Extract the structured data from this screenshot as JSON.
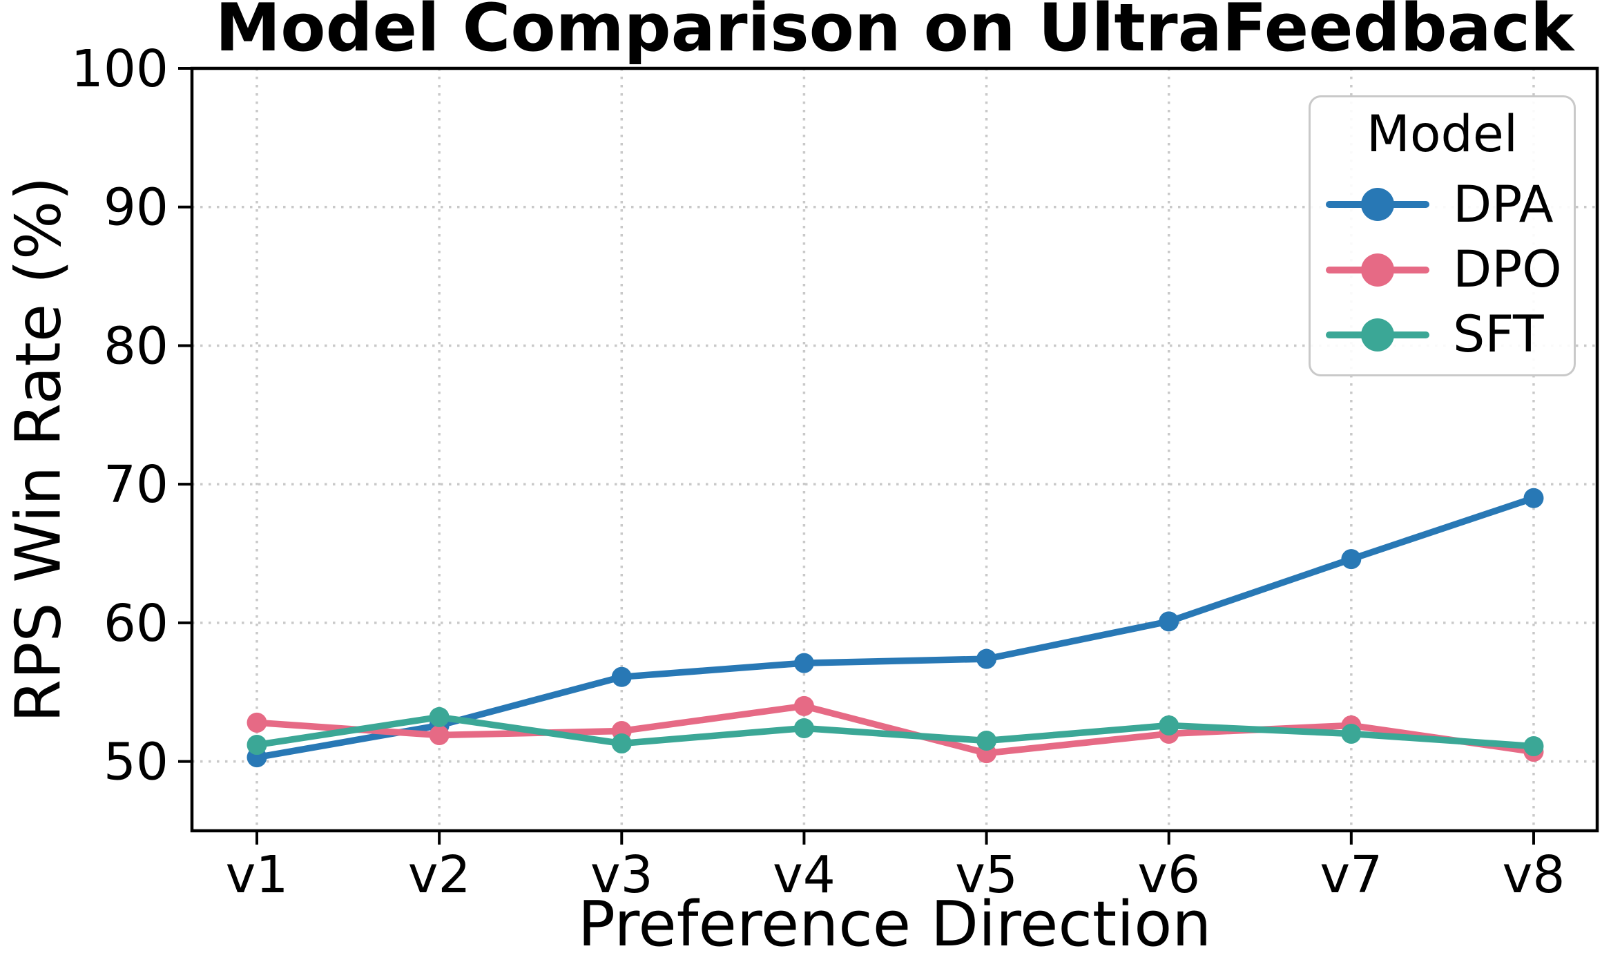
{
  "title": "Model Comparison on UltraFeedback",
  "axes": {
    "xlabel": "Preference Direction",
    "ylabel": "RPS Win Rate (%)"
  },
  "legend": {
    "title": "Model",
    "entries": [
      "DPA",
      "DPO",
      "SFT"
    ]
  },
  "colors": {
    "dpa": "#2878B5",
    "dpo": "#E66A85",
    "sft": "#3BA796",
    "grid": "#c9c9c9",
    "axis": "#000000",
    "legend_border": "#c9c9c9"
  },
  "chart_data": {
    "type": "line",
    "title": "Model Comparison on UltraFeedback",
    "xlabel": "Preference Direction",
    "ylabel": "RPS Win Rate (%)",
    "categories": [
      "v1",
      "v2",
      "v3",
      "v4",
      "v5",
      "v6",
      "v7",
      "v8"
    ],
    "series": [
      {
        "name": "DPA",
        "color": "#2878B5",
        "values": [
          50.3,
          52.6,
          56.1,
          57.1,
          57.4,
          60.1,
          64.6,
          69.0
        ]
      },
      {
        "name": "DPO",
        "color": "#E66A85",
        "values": [
          52.8,
          51.9,
          52.2,
          54.0,
          50.6,
          52.0,
          52.6,
          50.7
        ]
      },
      {
        "name": "SFT",
        "color": "#3BA796",
        "values": [
          51.2,
          53.2,
          51.3,
          52.4,
          51.5,
          52.6,
          52.0,
          51.1
        ]
      }
    ],
    "ylim": [
      45,
      100
    ],
    "yticks": [
      50,
      60,
      70,
      80,
      90,
      100
    ],
    "grid": true,
    "grid_style": "dotted",
    "legend_title": "Model",
    "legend_position": "upper right",
    "marker": "circle"
  }
}
